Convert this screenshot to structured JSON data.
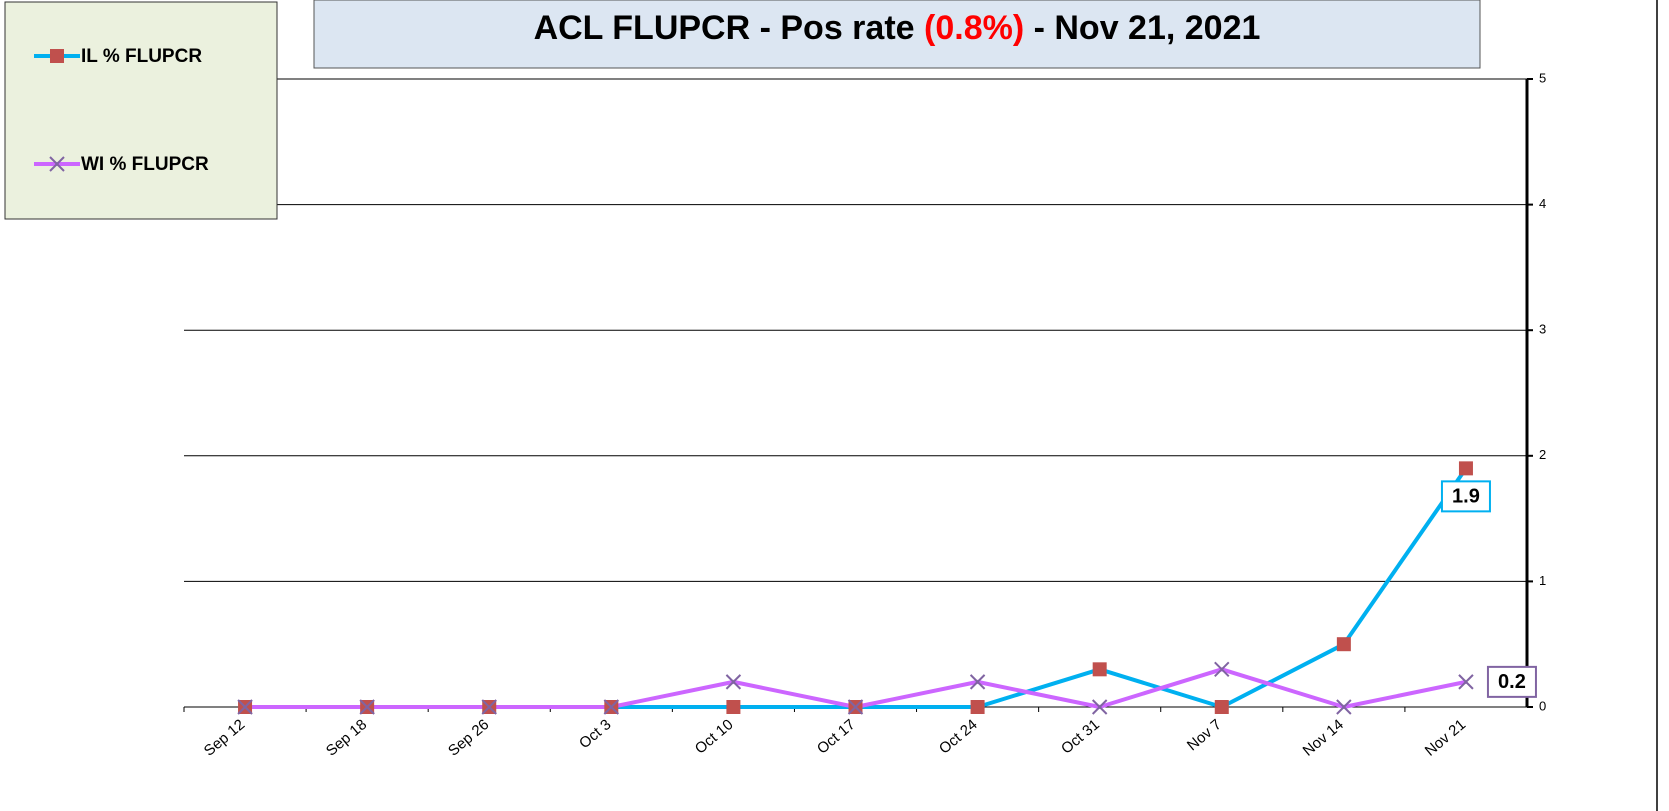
{
  "chart_data": {
    "type": "line",
    "title_parts": [
      "ACL FLUPCR -  Pos rate",
      "(0.8%)",
      "- Nov 21, 2021"
    ],
    "categories": [
      "Sep 12",
      "Sep 18",
      "Sep 26",
      "Oct 3",
      "Oct 10",
      "Oct 17",
      "Oct 24",
      "Oct 31",
      "Nov 7",
      "Nov 14",
      "Nov 21"
    ],
    "series": [
      {
        "name": "IL % FLUPCR",
        "color": "#00b0f0",
        "marker_color": "#c0504d",
        "marker": "square",
        "values": [
          0,
          0,
          0,
          0,
          0,
          0,
          0,
          0.3,
          0,
          0.5,
          1.9
        ]
      },
      {
        "name": "WI % FLUPCR",
        "color": "#cc66ff",
        "marker_color": "#8064a2",
        "marker": "x",
        "values": [
          0,
          0,
          0,
          0,
          0.2,
          0,
          0.2,
          0,
          0.3,
          0,
          0.2
        ]
      }
    ],
    "ylim": [
      0,
      5
    ],
    "yticks": [
      0,
      1,
      2,
      3,
      4,
      5
    ],
    "grid": true,
    "y_axis_side": "right"
  }
}
